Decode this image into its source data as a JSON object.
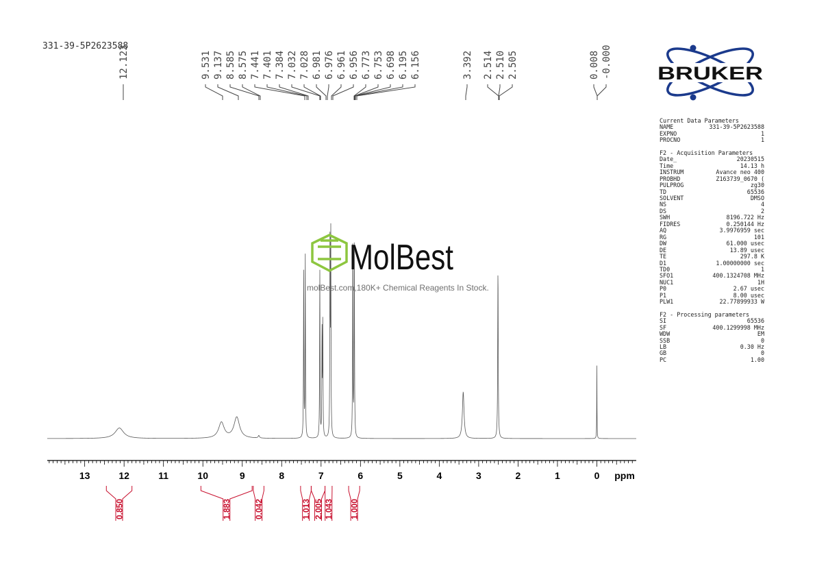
{
  "sample_name": "331-39-5P2623588",
  "logo": {
    "text": "BRUKER",
    "icon": "atom-orbit-icon",
    "color": "#1b3a8c"
  },
  "watermark": {
    "brand": "MolBest",
    "tagline": "molBest.com,180K+ Chemical Reagents In Stock.",
    "icon": "benzene-ring-icon",
    "icon_color": "#8dc63f"
  },
  "parameters": {
    "current": {
      "title": "Current Data Parameters",
      "rows": [
        {
          "label": "NAME",
          "value": "331-39-5P2623588"
        },
        {
          "label": "EXPNO",
          "value": "1"
        },
        {
          "label": "PROCNO",
          "value": "1"
        }
      ]
    },
    "acquisition": {
      "title": "F2 - Acquisition Parameters",
      "rows": [
        {
          "label": "Date_",
          "value": "20230515"
        },
        {
          "label": "Time",
          "value": "14.13 h"
        },
        {
          "label": "INSTRUM",
          "value": "Avance neo 400"
        },
        {
          "label": "PROBHD",
          "value": "Z163739_0670 ("
        },
        {
          "label": "PULPROG",
          "value": "zg30"
        },
        {
          "label": "TD",
          "value": "65536"
        },
        {
          "label": "SOLVENT",
          "value": "DMSO"
        },
        {
          "label": "NS",
          "value": "4"
        },
        {
          "label": "DS",
          "value": "2"
        },
        {
          "label": "SWH",
          "value": "8196.722 Hz"
        },
        {
          "label": "FIDRES",
          "value": "0.250144 Hz"
        },
        {
          "label": "AQ",
          "value": "3.9976959 sec"
        },
        {
          "label": "RG",
          "value": "101"
        },
        {
          "label": "DW",
          "value": "61.000 usec"
        },
        {
          "label": "DE",
          "value": "13.89 usec"
        },
        {
          "label": "TE",
          "value": "297.8 K"
        },
        {
          "label": "D1",
          "value": "1.00000000 sec"
        },
        {
          "label": "TD0",
          "value": "1"
        },
        {
          "label": "SFO1",
          "value": "400.1324708 MHz"
        },
        {
          "label": "NUC1",
          "value": "1H"
        },
        {
          "label": "P0",
          "value": "2.67 usec"
        },
        {
          "label": "P1",
          "value": "8.00 usec"
        },
        {
          "label": "PLW1",
          "value": "22.77899933 W"
        }
      ]
    },
    "processing": {
      "title": "F2 - Processing parameters",
      "rows": [
        {
          "label": "SI",
          "value": "65536"
        },
        {
          "label": "SF",
          "value": "400.1299998 MHz"
        },
        {
          "label": "WDW",
          "value": "EM"
        },
        {
          "label": "SSB",
          "value": "0"
        },
        {
          "label": "LB",
          "value": "0.30 Hz"
        },
        {
          "label": "GB",
          "value": "0"
        },
        {
          "label": "PC",
          "value": "1.00"
        }
      ]
    }
  },
  "chart_data": {
    "type": "line",
    "xlabel": "ppm",
    "xlim": [
      13.95,
      -1.0
    ],
    "x_reversed": true,
    "major_ticks": [
      13,
      12,
      11,
      10,
      9,
      8,
      7,
      6,
      5,
      4,
      3,
      2,
      1,
      0
    ],
    "peak_labels": [
      "12.123",
      "9.531",
      "9.137",
      "8.585",
      "8.575",
      "7.441",
      "7.401",
      "7.384",
      "7.032",
      "7.028",
      "6.981",
      "6.976",
      "6.961",
      "6.956",
      "6.773",
      "6.753",
      "6.698",
      "6.195",
      "6.156",
      "3.392",
      "2.514",
      "2.510",
      "2.505",
      "0.008",
      "-0.000"
    ],
    "peaks": [
      {
        "ppm": 12.12,
        "height": 0.05,
        "width": 0.13
      },
      {
        "ppm": 9.53,
        "height": 0.075,
        "width": 0.085
      },
      {
        "ppm": 9.14,
        "height": 0.1,
        "width": 0.085
      },
      {
        "ppm": 8.58,
        "height": 0.012,
        "width": 0.02
      },
      {
        "ppm": 7.441,
        "height": 0.81,
        "width": 0.006
      },
      {
        "ppm": 7.401,
        "height": 0.86,
        "width": 0.006
      },
      {
        "ppm": 7.032,
        "height": 0.8,
        "width": 0.006
      },
      {
        "ppm": 6.976,
        "height": 0.5,
        "width": 0.006
      },
      {
        "ppm": 6.956,
        "height": 0.55,
        "width": 0.006
      },
      {
        "ppm": 6.773,
        "height": 1.0,
        "width": 0.006
      },
      {
        "ppm": 6.753,
        "height": 0.95,
        "width": 0.006
      },
      {
        "ppm": 6.195,
        "height": 0.99,
        "width": 0.006
      },
      {
        "ppm": 6.156,
        "height": 0.98,
        "width": 0.006
      },
      {
        "ppm": 3.392,
        "height": 0.22,
        "width": 0.025
      },
      {
        "ppm": 2.51,
        "height": 0.8,
        "width": 0.008
      },
      {
        "ppm": 0.0,
        "height": 0.35,
        "width": 0.004
      }
    ],
    "integrals": [
      {
        "from": 12.45,
        "to": 11.8,
        "value": "0.850"
      },
      {
        "from": 10.05,
        "to": 8.75,
        "value": "1.883"
      },
      {
        "from": 8.72,
        "to": 8.45,
        "value": "0.042"
      },
      {
        "from": 7.52,
        "to": 7.25,
        "value": "1.013"
      },
      {
        "from": 7.25,
        "to": 6.9,
        "value": "2.005"
      },
      {
        "from": 6.9,
        "to": 6.72,
        "value": "1.043"
      },
      {
        "from": 6.3,
        "to": 6.02,
        "value": "1.000"
      }
    ],
    "colors": {
      "spectrum": "#555555",
      "integral": "#c8102e",
      "axis": "#000000"
    }
  }
}
